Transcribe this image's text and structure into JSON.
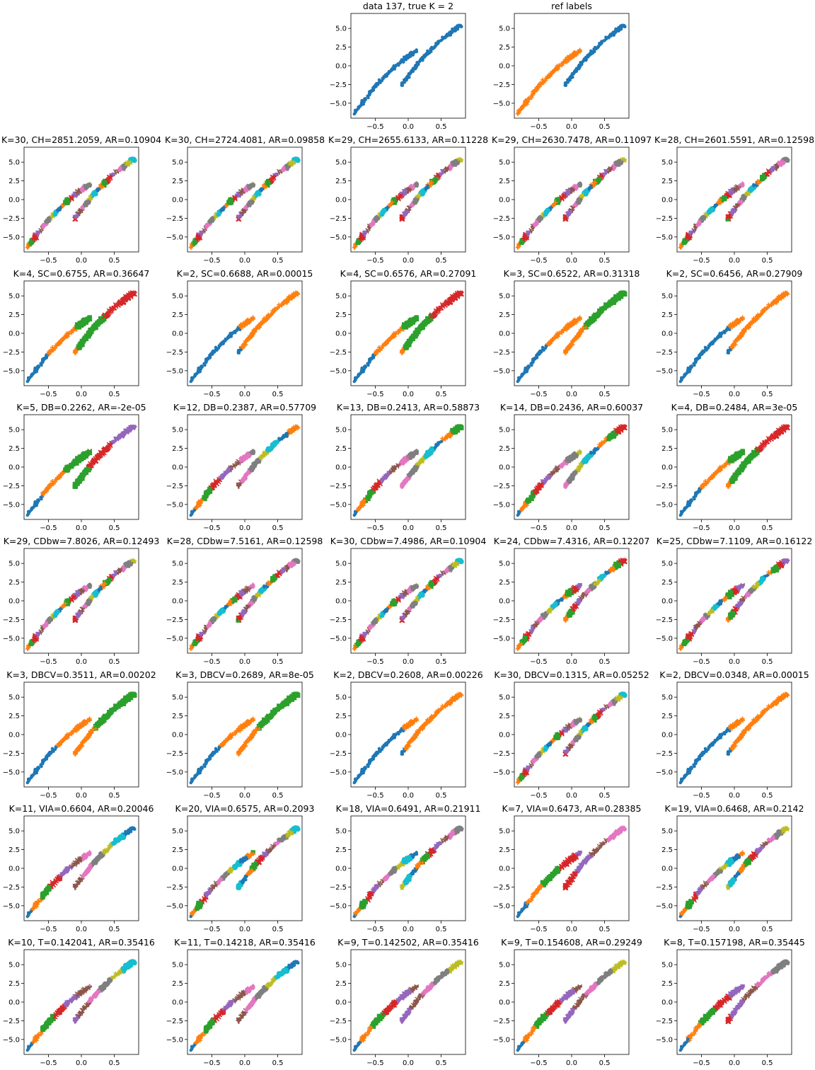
{
  "figure": {
    "x_ticks": [
      "−0.5",
      "0.0",
      "0.5"
    ],
    "y_ticks": [
      "−5.0",
      "−2.5",
      "0.0",
      "2.5",
      "5.0"
    ],
    "palette": [
      "#1f77b4",
      "#ff7f0e",
      "#2ca02c",
      "#d62728",
      "#9467bd",
      "#8c564b",
      "#e377c2",
      "#7f7f7f",
      "#bcbd22",
      "#17becf"
    ],
    "markers": [
      "dot",
      "plus",
      "square",
      "x",
      "triangle-down",
      "tri-down",
      "diamond",
      "pentagon",
      "star",
      "circle"
    ]
  },
  "chart_data": [
    {
      "type": "scatter",
      "title": "data 137, true K = 2",
      "xlim": [
        -0.87,
        0.87
      ],
      "ylim": [
        -7,
        7
      ],
      "grid": false
    },
    {
      "type": "scatter",
      "title": "ref labels",
      "xlim": [
        -0.87,
        0.87
      ],
      "ylim": [
        -7,
        7
      ],
      "grid": false
    },
    {
      "type": "scatter",
      "title": "K=30, CH=2851.2059, AR=0.10904",
      "clusters": 30
    },
    {
      "type": "scatter",
      "title": "K=30, CH=2724.4081, AR=0.09858",
      "clusters": 30
    },
    {
      "type": "scatter",
      "title": "K=29, CH=2655.6133, AR=0.11228",
      "clusters": 29
    },
    {
      "type": "scatter",
      "title": "K=29, CH=2630.7478, AR=0.11097",
      "clusters": 29
    },
    {
      "type": "scatter",
      "title": "K=28, CH=2601.5591, AR=0.12598",
      "clusters": 28
    },
    {
      "type": "scatter",
      "title": "K=4, SC=0.6755, AR=0.36647",
      "clusters": 4
    },
    {
      "type": "scatter",
      "title": "K=2, SC=0.6688, AR=0.00015",
      "clusters": 2
    },
    {
      "type": "scatter",
      "title": "K=4, SC=0.6576, AR=0.27091",
      "clusters": 4
    },
    {
      "type": "scatter",
      "title": "K=3, SC=0.6522, AR=0.31318",
      "clusters": 3
    },
    {
      "type": "scatter",
      "title": "K=2, SC=0.6456, AR=0.27909",
      "clusters": 2
    },
    {
      "type": "scatter",
      "title": "K=5, DB=0.2262, AR=-2e-05",
      "clusters": 5
    },
    {
      "type": "scatter",
      "title": "K=12, DB=0.2387, AR=0.57709",
      "clusters": 12
    },
    {
      "type": "scatter",
      "title": "K=13, DB=0.2413, AR=0.58873",
      "clusters": 13
    },
    {
      "type": "scatter",
      "title": "K=14, DB=0.2436, AR=0.60037",
      "clusters": 14
    },
    {
      "type": "scatter",
      "title": "K=4, DB=0.2484, AR=3e-05",
      "clusters": 4
    },
    {
      "type": "scatter",
      "title": "K=29, CDbw=7.8026, AR=0.12493",
      "clusters": 29
    },
    {
      "type": "scatter",
      "title": "K=28, CDbw=7.5161, AR=0.12598",
      "clusters": 28
    },
    {
      "type": "scatter",
      "title": "K=30, CDbw=7.4986, AR=0.10904",
      "clusters": 30
    },
    {
      "type": "scatter",
      "title": "K=24, CDbw=7.4316, AR=0.12207",
      "clusters": 24
    },
    {
      "type": "scatter",
      "title": "K=25, CDbw=7.1109, AR=0.16122",
      "clusters": 25
    },
    {
      "type": "scatter",
      "title": "K=3, DBCV=0.3511, AR=0.00202",
      "clusters": 3
    },
    {
      "type": "scatter",
      "title": "K=3, DBCV=0.2689, AR=8e-05",
      "clusters": 3
    },
    {
      "type": "scatter",
      "title": "K=2, DBCV=0.2608, AR=0.00226",
      "clusters": 2
    },
    {
      "type": "scatter",
      "title": "K=30, DBCV=0.1315, AR=0.05252",
      "clusters": 30
    },
    {
      "type": "scatter",
      "title": "K=2, DBCV=0.0348, AR=0.00015",
      "clusters": 2
    },
    {
      "type": "scatter",
      "title": "K=11, VIA=0.6604, AR=0.20046",
      "clusters": 11
    },
    {
      "type": "scatter",
      "title": "K=20, VIA=0.6575, AR=0.2093",
      "clusters": 20
    },
    {
      "type": "scatter",
      "title": "K=18, VIA=0.6491, AR=0.21911",
      "clusters": 18
    },
    {
      "type": "scatter",
      "title": "K=7, VIA=0.6473, AR=0.28385",
      "clusters": 7
    },
    {
      "type": "scatter",
      "title": "K=19, VIA=0.6468, AR=0.2142",
      "clusters": 19
    },
    {
      "type": "scatter",
      "title": "K=10, T=0.142041, AR=0.35416",
      "clusters": 10
    },
    {
      "type": "scatter",
      "title": "K=11, T=0.14218, AR=0.35416",
      "clusters": 11
    },
    {
      "type": "scatter",
      "title": "K=9, T=0.142502, AR=0.35416",
      "clusters": 9
    },
    {
      "type": "scatter",
      "title": "K=9, T=0.154608, AR=0.29249",
      "clusters": 9
    },
    {
      "type": "scatter",
      "title": "K=8, T=0.157198, AR=0.35445",
      "clusters": 8
    }
  ]
}
